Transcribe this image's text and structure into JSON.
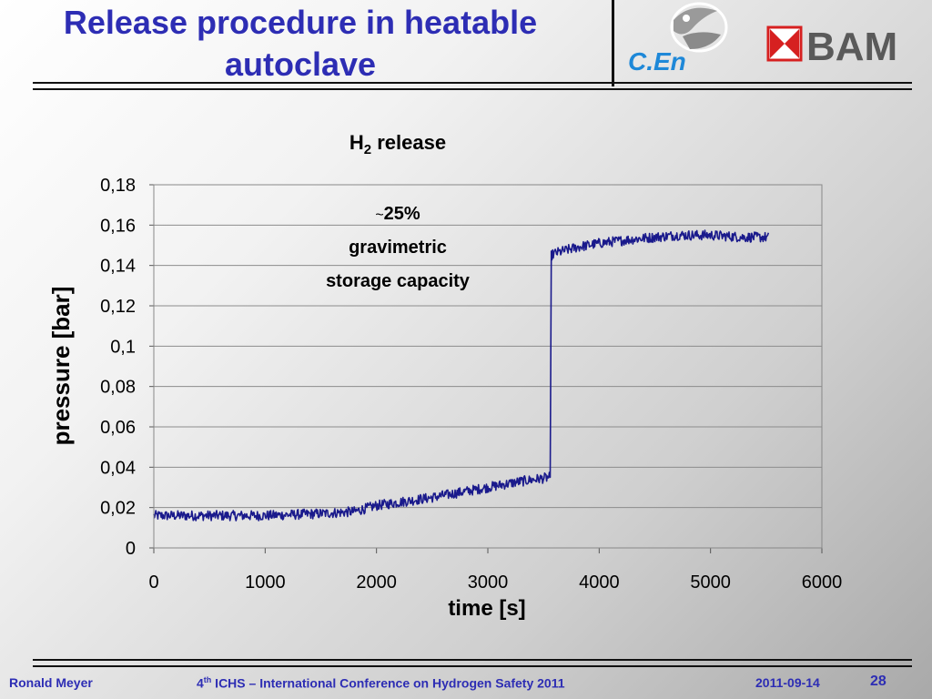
{
  "slide": {
    "title_line1": "Release procedure in heatable",
    "title_line2": "autoclave"
  },
  "logos": {
    "cen_name": "C.En",
    "bam_name": "BAM"
  },
  "footer": {
    "author": "Ronald Meyer",
    "conf_prefix": "4",
    "conf_sup": "th",
    "conf_rest": " ICHS – International Conference on Hydrogen Safety 2011",
    "date": "2011-09-14",
    "page": "28"
  },
  "colors": {
    "title": "#2d2db4",
    "series": "#1a1a8c",
    "cen": "#1e88d8",
    "bam_red": "#d62020"
  },
  "chart_data": {
    "type": "line",
    "title_main": "H",
    "title_sub": "2",
    "title_rest": " release",
    "xlabel": "time [s]",
    "ylabel": "pressure [bar]",
    "xlim": [
      0,
      6000
    ],
    "ylim": [
      0,
      0.18
    ],
    "xticks": [
      0,
      1000,
      2000,
      3000,
      4000,
      5000,
      6000
    ],
    "xtick_labels": [
      "0",
      "1000",
      "2000",
      "3000",
      "4000",
      "5000",
      "6000"
    ],
    "yticks": [
      0,
      0.02,
      0.04,
      0.06,
      0.08,
      0.1,
      0.12,
      0.14,
      0.16,
      0.18
    ],
    "ytick_labels": [
      "0",
      "0,02",
      "0,04",
      "0,06",
      "0,08",
      "0,1",
      "0,12",
      "0,14",
      "0,16",
      "0,18"
    ],
    "grid": "horizontal",
    "annotation": {
      "tilde": "~",
      "percent": "25%",
      "line2": "gravimetric",
      "line3": "storage capacity"
    },
    "series": [
      {
        "x": [
          0,
          500,
          1000,
          1500,
          1800,
          2000,
          2500,
          3000,
          3300,
          3560,
          3570,
          3600,
          3800,
          4000,
          4300,
          4500,
          4700,
          5000,
          5300,
          5520
        ],
        "y": [
          0.016,
          0.016,
          0.016,
          0.017,
          0.018,
          0.021,
          0.025,
          0.03,
          0.033,
          0.035,
          0.145,
          0.146,
          0.149,
          0.151,
          0.153,
          0.154,
          0.155,
          0.155,
          0.154,
          0.154
        ],
        "noise": 0.0025
      }
    ]
  }
}
